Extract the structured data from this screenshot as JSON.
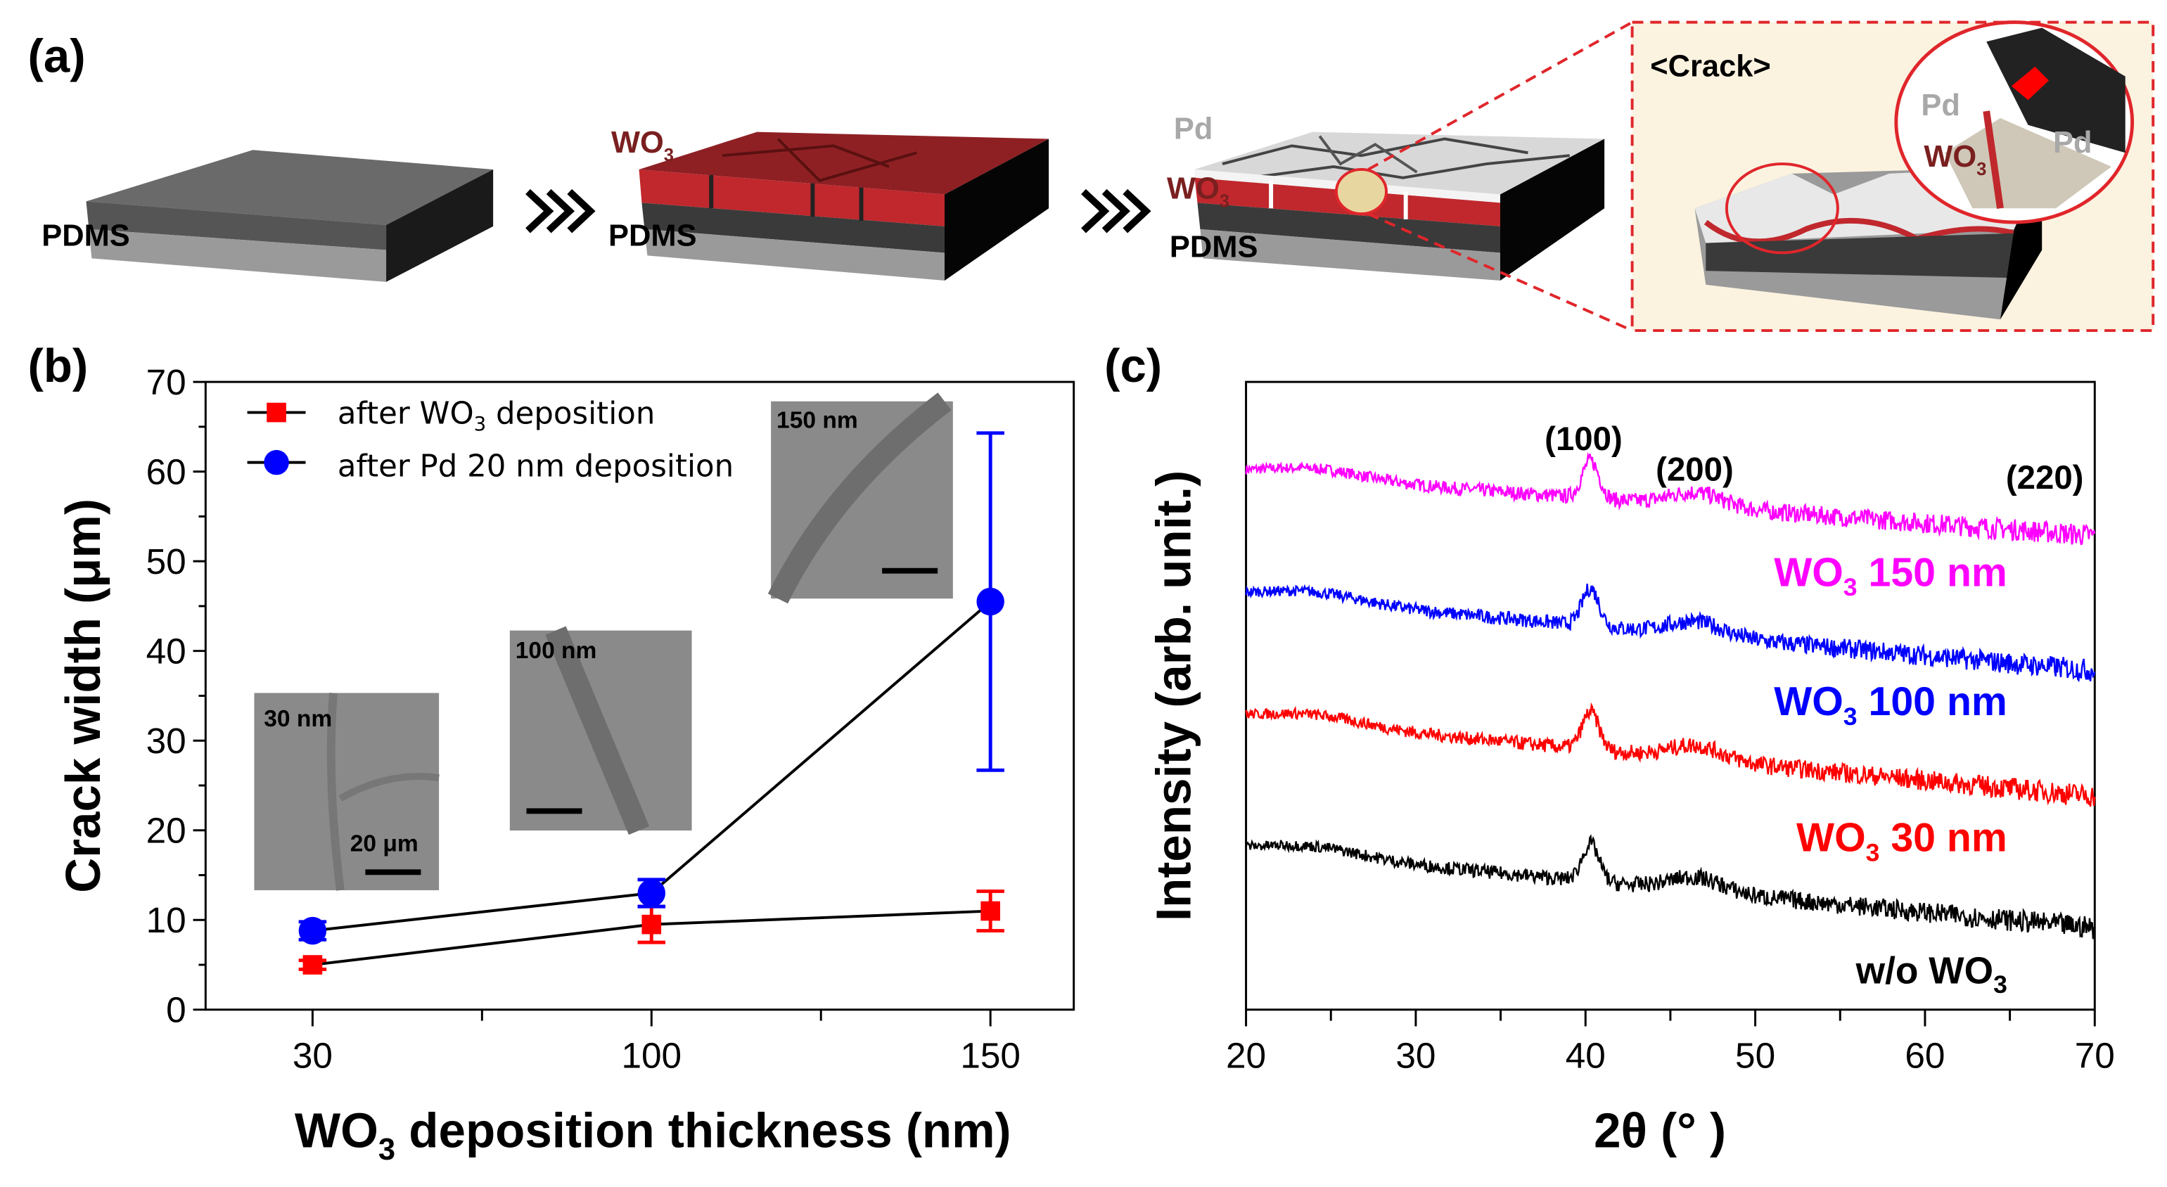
{
  "panel_a": {
    "letter": "(a)",
    "pdms_label": "PDMS",
    "wo_main": "WO",
    "wo_sub": "3",
    "pd_label": "Pd",
    "crack_label": "<Crack>",
    "colors": {
      "wo3": "#7a1f1f",
      "red_layer": "#c0282d",
      "pd": "#a8a8a8",
      "inset_bg": "#fbf3e0",
      "dash": "#e0262b"
    }
  },
  "chart_data": [
    {
      "id": "b",
      "type": "line",
      "letter": "(b)",
      "categories": [
        "30",
        "100",
        "150"
      ],
      "ylim": [
        0,
        70
      ],
      "yticks": [
        "0",
        "10",
        "20",
        "30",
        "40",
        "50",
        "60",
        "70"
      ],
      "ylabel": "Crack width (μm)",
      "xlabel_main": "WO",
      "xlabel_sub": "3",
      "xlabel_rest": " deposition thickness (nm)",
      "series": [
        {
          "name_main": "after WO",
          "name_sub": "3",
          "name_rest": " deposition",
          "color": "#ff0000",
          "marker": "square",
          "values": [
            5,
            9.5,
            11
          ],
          "errors": [
            0.5,
            2,
            2.2
          ]
        },
        {
          "name_main": "after Pd 20 nm deposition",
          "name_sub": "",
          "name_rest": "",
          "color": "#0000ff",
          "marker": "circle",
          "values": [
            8.8,
            13,
            45.5
          ],
          "errors": [
            1,
            1.5,
            18.8
          ]
        }
      ],
      "insets": [
        {
          "label": "30 nm",
          "scale_label": "20 μm"
        },
        {
          "label": "100 nm"
        },
        {
          "label": "150 nm"
        }
      ]
    },
    {
      "id": "c",
      "type": "line",
      "letter": "(c)",
      "xlim": [
        20,
        70
      ],
      "xticks": [
        "20",
        "30",
        "40",
        "50",
        "60",
        "70"
      ],
      "xlabel": "2θ (° )",
      "ylabel": "Intensity (arb. unit.)",
      "ylim": [
        0,
        100
      ],
      "peak_labels": [
        "(100)",
        "(200)",
        "(220)"
      ],
      "series": [
        {
          "label_main": "WO",
          "label_sub": "3",
          "label_rest": " 150 nm",
          "color": "#ff00ff",
          "start": 85.5,
          "end": 75.5
        },
        {
          "label_main": "WO",
          "label_sub": "3",
          "label_rest": " 100 nm",
          "color": "#0000ff",
          "start": 66,
          "end": 54
        },
        {
          "label_main": "WO",
          "label_sub": "3",
          "label_rest": " 30 nm",
          "color": "#ff0000",
          "start": 46.5,
          "end": 34
        },
        {
          "label_main": "w/o WO",
          "label_sub": "3",
          "label_rest": "",
          "color": "#000000",
          "start": 25.5,
          "end": 13
        }
      ]
    }
  ]
}
